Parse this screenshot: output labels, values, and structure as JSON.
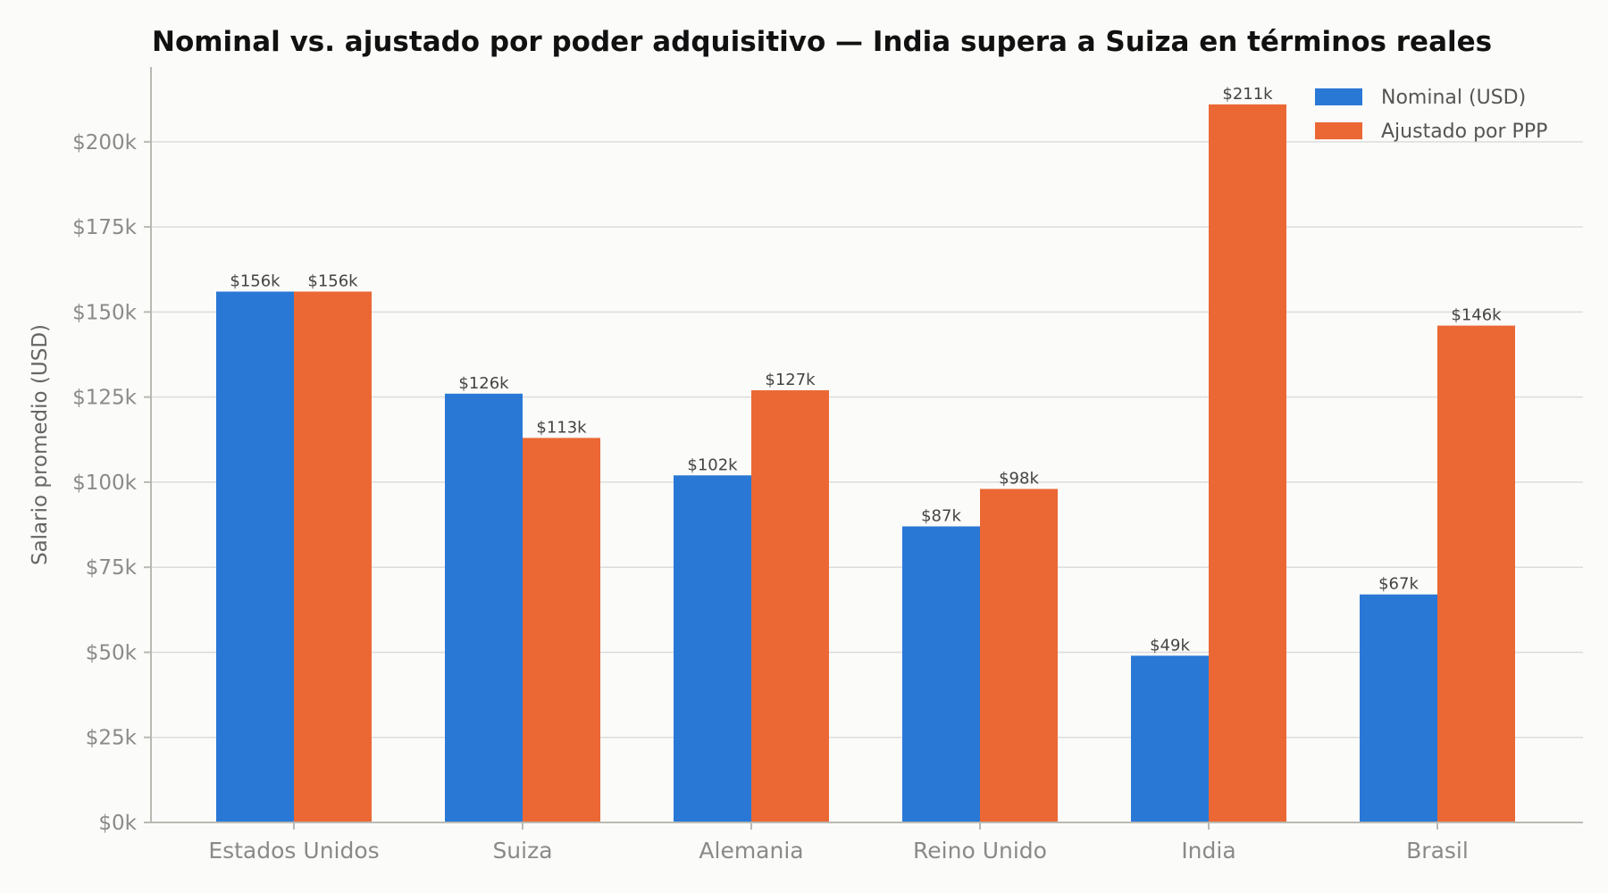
{
  "chart_data": {
    "type": "bar",
    "title": "Nominal vs. ajustado por poder adquisitivo — India supera a Suiza en términos reales",
    "xlabel": "",
    "ylabel": "Salario promedio (USD)",
    "ylim": [
      0,
      222000
    ],
    "yticks": [
      0,
      25000,
      50000,
      75000,
      100000,
      125000,
      150000,
      175000,
      200000
    ],
    "ytick_labels": [
      "$0k",
      "$25k",
      "$50k",
      "$75k",
      "$100k",
      "$125k",
      "$150k",
      "$175k",
      "$200k"
    ],
    "grid": true,
    "legend_position": "top-right",
    "categories": [
      "Estados Unidos",
      "Suiza",
      "Alemania",
      "Reino Unido",
      "India",
      "Brasil"
    ],
    "series": [
      {
        "name": "Nominal (USD)",
        "color": "#2a78d6",
        "values": [
          156000,
          126000,
          102000,
          87000,
          49000,
          67000
        ],
        "labels": [
          "$156k",
          "$126k",
          "$102k",
          "$87k",
          "$49k",
          "$67k"
        ]
      },
      {
        "name": "Ajustado por PPP",
        "color": "#eb6834",
        "values": [
          156000,
          113000,
          127000,
          98000,
          211000,
          146000
        ],
        "labels": [
          "$156k",
          "$113k",
          "$127k",
          "$98k",
          "$211k",
          "$146k"
        ]
      }
    ]
  }
}
